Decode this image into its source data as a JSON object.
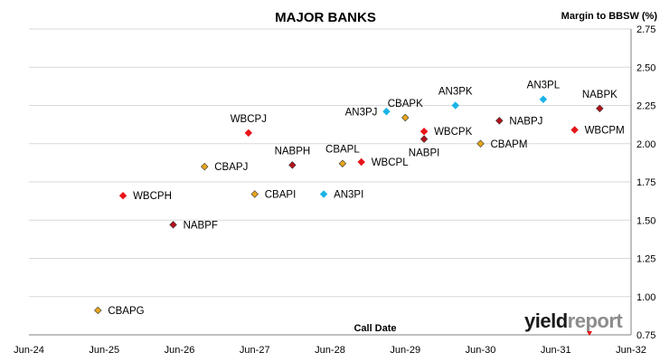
{
  "chart_data": {
    "type": "scatter",
    "title": "MAJOR BANKS",
    "ylabel": "Margin to BBSW (%)",
    "xlabel": "Call Date",
    "x_ticks": [
      "Jun-24",
      "Jun-25",
      "Jun-26",
      "Jun-27",
      "Jun-28",
      "Jun-29",
      "Jun-30",
      "Jun-31",
      "Jun-32"
    ],
    "y_ticks": [
      "0.75",
      "1.00",
      "1.25",
      "1.50",
      "1.75",
      "2.00",
      "2.25",
      "2.50",
      "2.75"
    ],
    "xlim": [
      "2024-06",
      "2032-06"
    ],
    "ylim": [
      0.75,
      2.75
    ],
    "grid": "horizontal",
    "legend": "none",
    "colors": {
      "WBC": "#e8141a",
      "NAB": "#b4111a",
      "CBA": "#e6a51c",
      "ANZ": "#1ab3e6"
    },
    "points": [
      {
        "label": "CBAPG",
        "x": "2025-05",
        "y": 0.91,
        "issuer": "CBA",
        "label_pos": "right"
      },
      {
        "label": "WBCPH",
        "x": "2025-09",
        "y": 1.66,
        "issuer": "WBC",
        "label_pos": "right"
      },
      {
        "label": "NABPF",
        "x": "2026-05",
        "y": 1.47,
        "issuer": "NAB",
        "label_pos": "right"
      },
      {
        "label": "CBAPJ",
        "x": "2026-10",
        "y": 1.85,
        "issuer": "CBA",
        "label_pos": "right"
      },
      {
        "label": "WBCPJ",
        "x": "2027-05",
        "y": 2.07,
        "issuer": "WBC",
        "label_pos": "above"
      },
      {
        "label": "CBAPI",
        "x": "2027-06",
        "y": 1.67,
        "issuer": "CBA",
        "label_pos": "right"
      },
      {
        "label": "NABPH",
        "x": "2027-12",
        "y": 1.86,
        "issuer": "NAB",
        "label_pos": "above"
      },
      {
        "label": "AN3PI",
        "x": "2028-05",
        "y": 1.67,
        "issuer": "ANZ",
        "label_pos": "right"
      },
      {
        "label": "CBAPL",
        "x": "2028-08",
        "y": 1.87,
        "issuer": "CBA",
        "label_pos": "above"
      },
      {
        "label": "WBCPL",
        "x": "2028-11",
        "y": 1.88,
        "issuer": "WBC",
        "label_pos": "right"
      },
      {
        "label": "AN3PJ",
        "x": "2029-03",
        "y": 2.21,
        "issuer": "ANZ",
        "label_pos": "left"
      },
      {
        "label": "CBAPK",
        "x": "2029-06",
        "y": 2.17,
        "issuer": "CBA",
        "label_pos": "above"
      },
      {
        "label": "WBCPK",
        "x": "2029-09",
        "y": 2.08,
        "issuer": "WBC",
        "label_pos": "right"
      },
      {
        "label": "NABPI",
        "x": "2029-09",
        "y": 2.03,
        "issuer": "NAB",
        "label_pos": "below"
      },
      {
        "label": "AN3PK",
        "x": "2030-02",
        "y": 2.25,
        "issuer": "ANZ",
        "label_pos": "above"
      },
      {
        "label": "CBAPM",
        "x": "2030-06",
        "y": 2.0,
        "issuer": "CBA",
        "label_pos": "right"
      },
      {
        "label": "NABPJ",
        "x": "2030-09",
        "y": 2.15,
        "issuer": "NAB",
        "label_pos": "right"
      },
      {
        "label": "AN3PL",
        "x": "2031-04",
        "y": 2.29,
        "issuer": "ANZ",
        "label_pos": "above"
      },
      {
        "label": "WBCPM",
        "x": "2031-09",
        "y": 2.09,
        "issuer": "WBC",
        "label_pos": "right"
      },
      {
        "label": "NABPK",
        "x": "2032-01",
        "y": 2.23,
        "issuer": "NAB",
        "label_pos": "above"
      }
    ]
  },
  "logo": {
    "part1": "yield",
    "part2": "report",
    "color_dark": "#1a1a1a",
    "color_light": "#8c8c8c",
    "accent": "#e8141a"
  }
}
